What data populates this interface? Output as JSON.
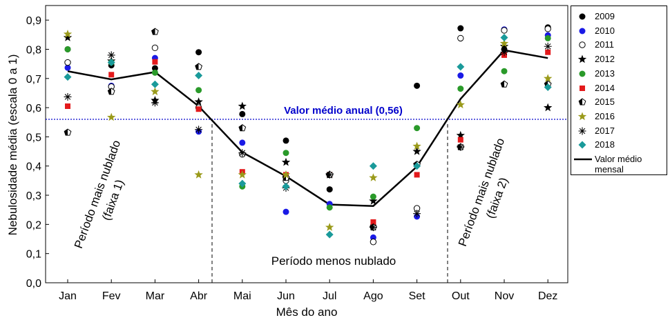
{
  "chart_data": {
    "type": "scatter",
    "x_label": "Mês do ano",
    "y_label": "Nebulosidade média (escala 0 a 1)",
    "categories": [
      "Jan",
      "Fev",
      "Mar",
      "Abr",
      "Mai",
      "Jun",
      "Jul",
      "Ago",
      "Set",
      "Out",
      "Nov",
      "Dez"
    ],
    "ylim": [
      0,
      0.95
    ],
    "yticks": [
      {
        "value": 0,
        "label": "0,0"
      },
      {
        "value": 0.1,
        "label": "0,1"
      },
      {
        "value": 0.2,
        "label": "0,2"
      },
      {
        "value": 0.3,
        "label": "0,3"
      },
      {
        "value": 0.4,
        "label": "0,4"
      },
      {
        "value": 0.5,
        "label": "0,5"
      },
      {
        "value": 0.6,
        "label": "0,6"
      },
      {
        "value": 0.7,
        "label": "0,7"
      },
      {
        "value": 0.8,
        "label": "0,8"
      },
      {
        "value": 0.9,
        "label": "0,9"
      }
    ],
    "series": [
      {
        "name": "2009",
        "color": "#000000",
        "marker": "circle",
        "values": [
          0.8,
          0.745,
          0.735,
          0.79,
          0.578,
          0.487,
          0.32,
          0.195,
          0.675,
          0.872,
          0.8,
          0.875
        ]
      },
      {
        "name": "2010",
        "color": "#1a1ae6",
        "marker": "circle",
        "values": [
          0.737,
          0.675,
          0.77,
          0.518,
          0.48,
          0.243,
          0.27,
          0.155,
          0.227,
          0.71,
          0.868,
          0.848
        ]
      },
      {
        "name": "2011",
        "color": "#000000",
        "marker": "circle-open",
        "values": [
          0.755,
          0.672,
          0.805,
          0.6,
          0.44,
          0.35,
          0.37,
          0.14,
          0.255,
          0.838,
          0.865,
          0.87
        ]
      },
      {
        "name": "2012",
        "color": "#000000",
        "marker": "star",
        "values": [
          0.84,
          0.76,
          0.625,
          0.62,
          0.605,
          0.413,
          0.37,
          0.28,
          0.45,
          0.505,
          0.81,
          0.6
        ]
      },
      {
        "name": "2013",
        "color": "#2a9a2a",
        "marker": "circle",
        "values": [
          0.8,
          0.755,
          0.72,
          0.66,
          0.33,
          0.445,
          0.258,
          0.295,
          0.53,
          0.665,
          0.725,
          0.838
        ]
      },
      {
        "name": "2014",
        "color": "#e31a1c",
        "marker": "square",
        "values": [
          0.605,
          0.713,
          0.757,
          0.595,
          0.38,
          0.37,
          0.37,
          0.208,
          0.37,
          0.49,
          0.78,
          0.79
        ]
      },
      {
        "name": "2015",
        "color": "#000000",
        "marker": "pentagon-half",
        "values": [
          0.515,
          0.655,
          0.86,
          0.74,
          0.53,
          0.36,
          0.37,
          0.19,
          0.405,
          0.465,
          0.68,
          0.68
        ]
      },
      {
        "name": "2016",
        "color": "#9a9a1a",
        "marker": "star",
        "values": [
          0.852,
          0.567,
          0.655,
          0.37,
          0.37,
          0.37,
          0.19,
          0.36,
          0.468,
          0.61,
          0.82,
          0.7
        ]
      },
      {
        "name": "2017",
        "color": "#000000",
        "marker": "asterisk",
        "values": [
          0.637,
          0.78,
          0.617,
          0.525,
          0.445,
          0.325,
          0.37,
          0.19,
          0.237,
          0.465,
          0.79,
          0.81
        ]
      },
      {
        "name": "2018",
        "color": "#1a9a9a",
        "marker": "diamond",
        "values": [
          0.705,
          0.755,
          0.68,
          0.71,
          0.34,
          0.33,
          0.165,
          0.4,
          0.4,
          0.74,
          0.84,
          0.67
        ]
      },
      {
        "name": "Valor médio mensal",
        "color": "#000000",
        "marker": "line",
        "values": [
          0.725,
          0.697,
          0.722,
          0.605,
          0.447,
          0.365,
          0.268,
          0.263,
          0.398,
          0.63,
          0.797,
          0.77
        ]
      }
    ],
    "reference_line": {
      "value": 0.56,
      "label": "Valor médio anual (0,56)",
      "color": "#0000cc"
    },
    "annotations": [
      {
        "lines": [
          "Período mais nublado",
          "(faixa 1)"
        ]
      },
      {
        "lines": [
          "Período menos nublado"
        ]
      },
      {
        "lines": [
          "Período mais nublado",
          "(faixa 2)"
        ]
      }
    ]
  }
}
